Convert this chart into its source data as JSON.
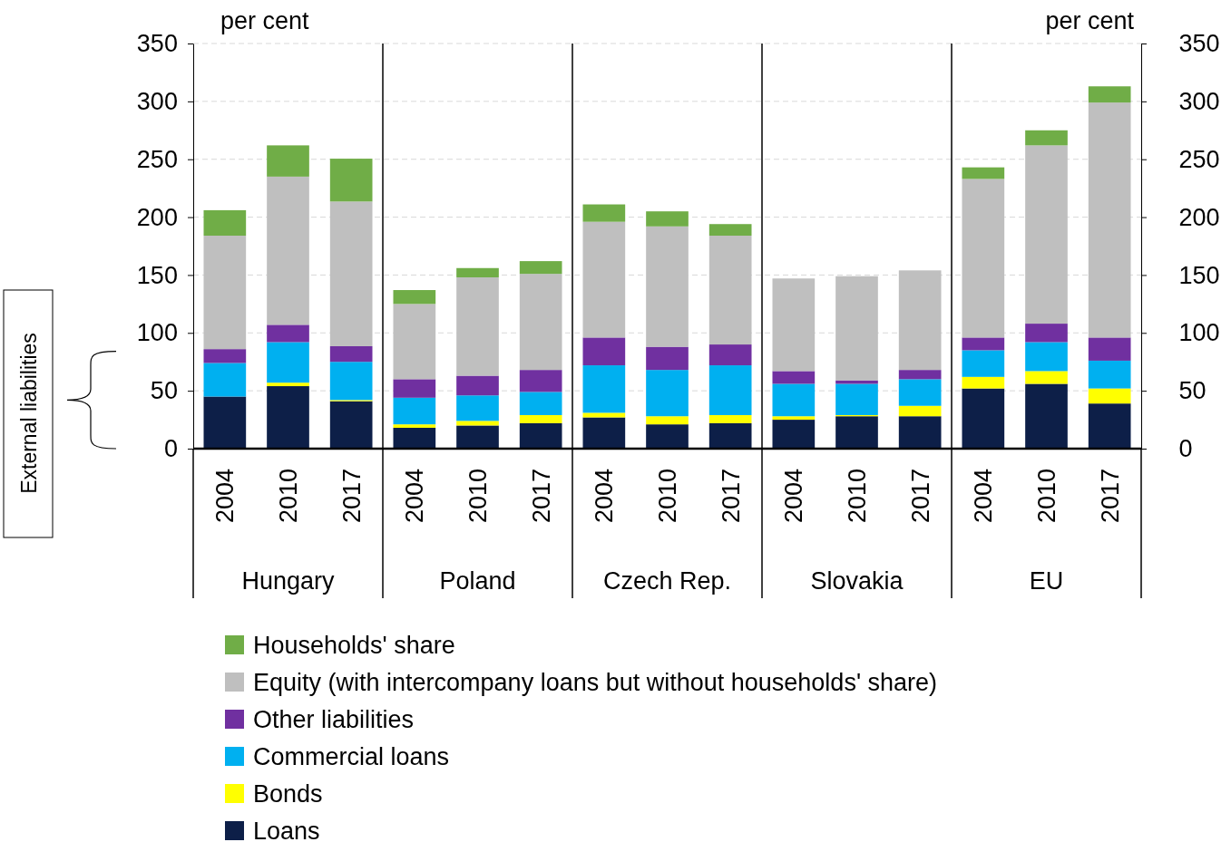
{
  "chart_data": {
    "type": "bar",
    "stacked": true,
    "categories": [
      "2004",
      "2010",
      "2017",
      "2004",
      "2010",
      "2017",
      "2004",
      "2010",
      "2017",
      "2004",
      "2010",
      "2017",
      "2004",
      "2010",
      "2017"
    ],
    "series": [
      {
        "name": "Loans",
        "color": "#0d1f48",
        "values": [
          45,
          54,
          41,
          18,
          20,
          22,
          27,
          21,
          22,
          25,
          28,
          28,
          52,
          56,
          39
        ]
      },
      {
        "name": "Bonds",
        "color": "#ffff00",
        "values": [
          0,
          3,
          1,
          3,
          4,
          7,
          4,
          7,
          7,
          3,
          1,
          9,
          10,
          11,
          13
        ]
      },
      {
        "name": "Commercial loans",
        "color": "#00b0f0",
        "values": [
          29,
          35,
          33,
          23,
          22,
          20,
          41,
          40,
          43,
          28,
          27,
          23,
          23,
          25,
          24
        ]
      },
      {
        "name": "Other liabilities",
        "color": "#7030a0",
        "values": [
          12,
          15,
          13.5,
          16,
          17,
          19,
          24,
          20,
          18,
          11,
          3,
          8,
          11,
          16,
          20
        ]
      },
      {
        "name": "Equity  (with intercompany loans but without households' share)",
        "color": "#bfbfbf",
        "values": [
          98,
          128,
          125,
          65,
          85,
          83,
          100,
          104,
          94,
          80,
          90,
          86,
          137,
          154,
          203
        ]
      },
      {
        "name": "Households' share",
        "color": "#70ad47",
        "values": [
          22,
          27,
          37,
          12,
          8,
          11,
          15,
          13,
          10,
          0,
          0,
          0,
          10,
          13,
          14
        ]
      }
    ],
    "ylim": [
      0,
      350
    ],
    "yticks": [
      0,
      50,
      100,
      150,
      200,
      250,
      300,
      350
    ],
    "y2lim": [
      0,
      350
    ],
    "y2ticks": [
      0,
      50,
      100,
      150,
      200,
      250,
      300,
      350
    ],
    "ylabel": "per cent",
    "y2label": "per cent",
    "grid": "y",
    "legend": "bottom",
    "annotations": [
      "Hungary",
      "Poland",
      "Czech Rep.",
      "Slovakia",
      "EU",
      "External liabilities"
    ]
  }
}
